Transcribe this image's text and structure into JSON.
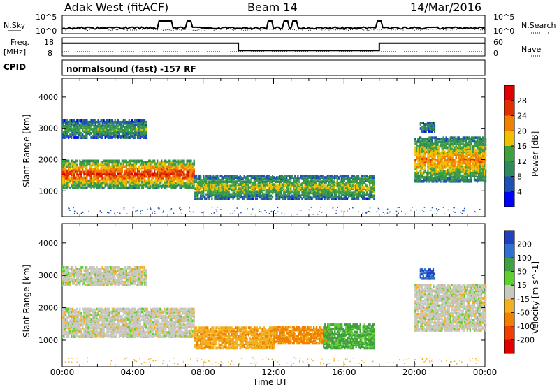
{
  "header": {
    "station": "Adak West (fitACF)",
    "beam": "Beam 14",
    "date": "14/Mar/2016"
  },
  "top_panels": {
    "nsky_label": "N.Sky",
    "nsky_ticks": [
      "10^5",
      "10^0"
    ],
    "nsearch_label": "N.Search",
    "nsearch_ticks": [
      "10^5",
      "10^0"
    ],
    "freq_label": "Freq.",
    "freq_unit": "[MHz]",
    "freq_ticks": [
      "18",
      "8"
    ],
    "nave_label": "Nave",
    "nave_ticks": [
      "60",
      "0"
    ],
    "cpid_label": "CPID",
    "cpid_text": "normalsound (fast) -157 RF"
  },
  "chart_data": [
    {
      "type": "heatmap",
      "name": "power",
      "ylabel": "Slant Range [km]",
      "xlabel": "",
      "xlim": [
        0,
        24
      ],
      "ylim": [
        180,
        4600
      ],
      "yticks": [
        "1000",
        "2000",
        "3000",
        "4000"
      ],
      "colorbar": {
        "label": "Power [dB]",
        "ticks": [
          "4",
          "8",
          "12",
          "16",
          "20",
          "24",
          "28"
        ],
        "colors": [
          "#0000ff",
          "#1f4fb3",
          "#2e8a5a",
          "#40a040",
          "#f0c000",
          "#f08000",
          "#e03000",
          "#e00000"
        ]
      },
      "regions": [
        {
          "t0": 0.0,
          "t1": 7.5,
          "r0": 1100,
          "r1": 2000,
          "level": 0.75
        },
        {
          "t0": 0.0,
          "t1": 4.8,
          "r0": 2700,
          "r1": 3250,
          "level": 0.35
        },
        {
          "t0": 7.5,
          "t1": 17.7,
          "r0": 750,
          "r1": 1500,
          "level": 0.45
        },
        {
          "t0": 20.3,
          "t1": 21.1,
          "r0": 2900,
          "r1": 3200,
          "level": 0.3
        },
        {
          "t0": 20.0,
          "t1": 24.0,
          "r0": 1300,
          "r1": 2700,
          "level": 0.6
        }
      ]
    },
    {
      "type": "heatmap",
      "name": "velocity",
      "ylabel": "Slant Range [km]",
      "xlabel": "Time UT",
      "xlim": [
        0,
        24
      ],
      "ylim": [
        180,
        4600
      ],
      "xticks": [
        "00:00",
        "04:00",
        "08:00",
        "12:00",
        "16:00",
        "20:00",
        "00:00"
      ],
      "yticks": [
        "1000",
        "2000",
        "3000",
        "4000"
      ],
      "colorbar": {
        "label": "Velocity [m s^-1]",
        "ticks": [
          "200",
          "100",
          "50",
          "15",
          "-15",
          "-50",
          "-100",
          "-200"
        ],
        "colors": [
          "#2040c0",
          "#3070d0",
          "#40a040",
          "#60d030",
          "#c8c8c0",
          "#f0b020",
          "#f08000",
          "#f04000",
          "#e00000"
        ]
      },
      "regions": [
        {
          "t0": 0.0,
          "t1": 7.5,
          "r0": 1100,
          "r1": 2000,
          "vel": 0
        },
        {
          "t0": 0.0,
          "t1": 4.8,
          "r0": 2700,
          "r1": 3250,
          "vel": 0
        },
        {
          "t0": 7.5,
          "t1": 12.0,
          "r0": 750,
          "r1": 1400,
          "vel": -40
        },
        {
          "t0": 12.0,
          "t1": 15.2,
          "r0": 900,
          "r1": 1400,
          "vel": -60
        },
        {
          "t0": 14.8,
          "t1": 17.7,
          "r0": 750,
          "r1": 1500,
          "vel": 40
        },
        {
          "t0": 20.3,
          "t1": 21.1,
          "r0": 2900,
          "r1": 3200,
          "vel": 150
        },
        {
          "t0": 20.0,
          "t1": 24.0,
          "r0": 1300,
          "r1": 2700,
          "vel": 0
        }
      ]
    }
  ],
  "freq_series": {
    "x": [
      0,
      10,
      10,
      18,
      18,
      24
    ],
    "y": [
      15,
      15,
      11,
      11,
      15,
      15
    ]
  },
  "nsky_spikes": [
    5.6,
    5.9,
    6.1,
    7.2,
    11.8,
    12.7,
    13.2,
    18.0
  ]
}
